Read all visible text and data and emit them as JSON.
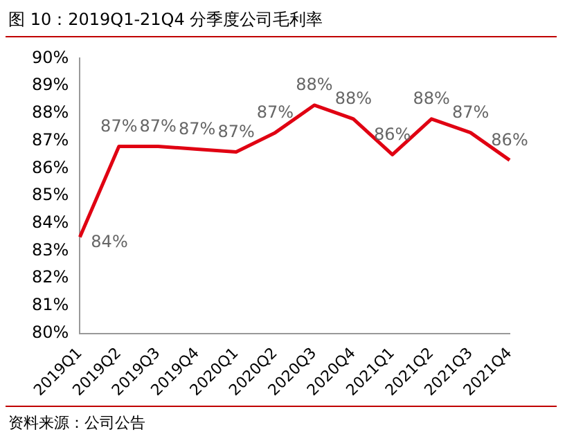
{
  "chart_data": {
    "type": "line",
    "title": "图 10：2019Q1-21Q4 分季度公司毛利率",
    "categories": [
      "2019Q1",
      "2019Q2",
      "2019Q3",
      "2019Q4",
      "2020Q1",
      "2020Q2",
      "2020Q3",
      "2020Q4",
      "2021Q1",
      "2021Q2",
      "2021Q3",
      "2021Q4"
    ],
    "series": [
      {
        "color": "#e00012",
        "values": [
          83.5,
          86.8,
          86.8,
          86.7,
          86.6,
          87.3,
          88.3,
          87.8,
          86.5,
          87.8,
          87.3,
          86.3
        ],
        "value_labels": [
          "84%",
          "87%",
          "87%",
          "87%",
          "87%",
          "87%",
          "88%",
          "88%",
          "86%",
          "88%",
          "87%",
          "86%"
        ]
      }
    ],
    "ylim": [
      80,
      90
    ],
    "yticks": [
      {
        "value": 80,
        "label": "80%"
      },
      {
        "value": 81,
        "label": "81%"
      },
      {
        "value": 82,
        "label": "82%"
      },
      {
        "value": 83,
        "label": "83%"
      },
      {
        "value": 84,
        "label": "84%"
      },
      {
        "value": 85,
        "label": "85%"
      },
      {
        "value": 86,
        "label": "86%"
      },
      {
        "value": 87,
        "label": "87%"
      },
      {
        "value": 88,
        "label": "88%"
      },
      {
        "value": 89,
        "label": "89%"
      },
      {
        "value": 90,
        "label": "90%"
      }
    ],
    "grid": false,
    "legend": false,
    "marker": "none",
    "line_style": "solid",
    "annotations": [
      "资料来源：公司公告"
    ]
  }
}
